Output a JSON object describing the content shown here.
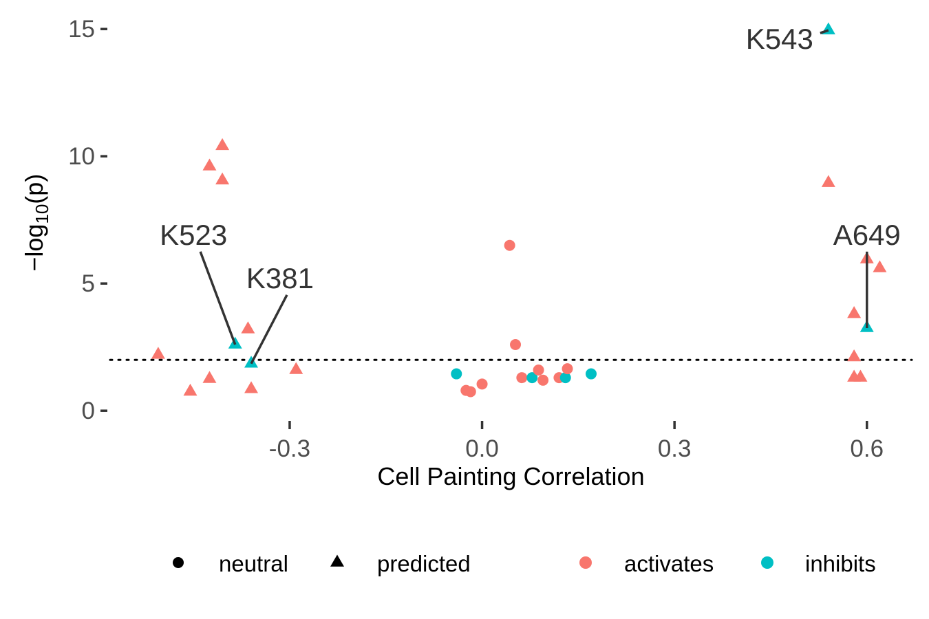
{
  "chart_data": {
    "type": "scatter",
    "title": "",
    "xlabel": "Cell Painting Correlation",
    "ylabel": "−log",
    "ylabel_sub": "10",
    "ylabel_tail": "(p)",
    "xlim": [
      -0.58,
      0.67
    ],
    "ylim": [
      -0.4,
      15.6
    ],
    "x_ticks": [
      {
        "value": -0.3,
        "label": "-0.3"
      },
      {
        "value": 0.0,
        "label": "0.0"
      },
      {
        "value": 0.3,
        "label": "0.3"
      },
      {
        "value": 0.6,
        "label": "0.6"
      }
    ],
    "y_ticks": [
      {
        "value": 0,
        "label": "0"
      },
      {
        "value": 5,
        "label": "5"
      },
      {
        "value": 10,
        "label": "10"
      },
      {
        "value": 15,
        "label": "15"
      }
    ],
    "grid": false,
    "threshold_y": 2,
    "colors": {
      "activates": "#F8766D",
      "inhibits": "#00BFC4"
    },
    "points": [
      {
        "x": -0.505,
        "y": 2.2,
        "shape": "predicted",
        "group": "activates"
      },
      {
        "x": -0.455,
        "y": 0.75,
        "shape": "predicted",
        "group": "activates"
      },
      {
        "x": -0.425,
        "y": 1.25,
        "shape": "predicted",
        "group": "activates"
      },
      {
        "x": -0.425,
        "y": 9.6,
        "shape": "predicted",
        "group": "activates"
      },
      {
        "x": -0.405,
        "y": 10.4,
        "shape": "predicted",
        "group": "activates"
      },
      {
        "x": -0.405,
        "y": 9.05,
        "shape": "predicted",
        "group": "activates"
      },
      {
        "x": -0.385,
        "y": 2.6,
        "shape": "predicted",
        "group": "inhibits"
      },
      {
        "x": -0.365,
        "y": 3.2,
        "shape": "predicted",
        "group": "activates"
      },
      {
        "x": -0.36,
        "y": 1.85,
        "shape": "predicted",
        "group": "inhibits"
      },
      {
        "x": -0.36,
        "y": 0.85,
        "shape": "predicted",
        "group": "activates"
      },
      {
        "x": -0.29,
        "y": 1.6,
        "shape": "predicted",
        "group": "activates"
      },
      {
        "x": -0.04,
        "y": 1.45,
        "shape": "neutral",
        "group": "inhibits"
      },
      {
        "x": -0.025,
        "y": 0.8,
        "shape": "neutral",
        "group": "activates"
      },
      {
        "x": -0.018,
        "y": 0.75,
        "shape": "neutral",
        "group": "activates"
      },
      {
        "x": 0.0,
        "y": 1.05,
        "shape": "neutral",
        "group": "activates"
      },
      {
        "x": 0.043,
        "y": 6.5,
        "shape": "neutral",
        "group": "activates"
      },
      {
        "x": 0.052,
        "y": 2.6,
        "shape": "neutral",
        "group": "activates"
      },
      {
        "x": 0.062,
        "y": 1.3,
        "shape": "neutral",
        "group": "activates"
      },
      {
        "x": 0.078,
        "y": 1.3,
        "shape": "neutral",
        "group": "inhibits"
      },
      {
        "x": 0.088,
        "y": 1.6,
        "shape": "neutral",
        "group": "activates"
      },
      {
        "x": 0.095,
        "y": 1.2,
        "shape": "neutral",
        "group": "activates"
      },
      {
        "x": 0.12,
        "y": 1.3,
        "shape": "neutral",
        "group": "activates"
      },
      {
        "x": 0.13,
        "y": 1.3,
        "shape": "neutral",
        "group": "inhibits"
      },
      {
        "x": 0.133,
        "y": 1.65,
        "shape": "neutral",
        "group": "activates"
      },
      {
        "x": 0.17,
        "y": 1.45,
        "shape": "neutral",
        "group": "inhibits"
      },
      {
        "x": 0.54,
        "y": 14.95,
        "shape": "predicted",
        "group": "inhibits"
      },
      {
        "x": 0.54,
        "y": 8.95,
        "shape": "predicted",
        "group": "activates"
      },
      {
        "x": 0.58,
        "y": 3.8,
        "shape": "predicted",
        "group": "activates"
      },
      {
        "x": 0.58,
        "y": 2.1,
        "shape": "predicted",
        "group": "activates"
      },
      {
        "x": 0.58,
        "y": 1.3,
        "shape": "predicted",
        "group": "activates"
      },
      {
        "x": 0.59,
        "y": 1.3,
        "shape": "predicted",
        "group": "activates"
      },
      {
        "x": 0.6,
        "y": 5.95,
        "shape": "predicted",
        "group": "activates"
      },
      {
        "x": 0.6,
        "y": 3.25,
        "shape": "predicted",
        "group": "inhibits"
      },
      {
        "x": 0.62,
        "y": 5.6,
        "shape": "predicted",
        "group": "activates"
      }
    ],
    "annotations": [
      {
        "text": "K523",
        "x": -0.385,
        "y": 2.6,
        "label_x": -0.45,
        "label_y": 6.9
      },
      {
        "text": "K381",
        "x": -0.36,
        "y": 1.85,
        "label_x": -0.315,
        "label_y": 5.2
      },
      {
        "text": "K543",
        "x": 0.54,
        "y": 14.95,
        "label_x": 0.42,
        "label_y": 14.6
      },
      {
        "text": "A649",
        "x": 0.6,
        "y": 3.25,
        "label_x": 0.6,
        "label_y": 6.9
      }
    ],
    "legend": {
      "position": "bottom",
      "shape_items": [
        {
          "key": "neutral",
          "label": "neutral"
        },
        {
          "key": "predicted",
          "label": "predicted"
        }
      ],
      "color_items": [
        {
          "key": "activates",
          "label": "activates"
        },
        {
          "key": "inhibits",
          "label": "inhibits"
        }
      ]
    }
  }
}
